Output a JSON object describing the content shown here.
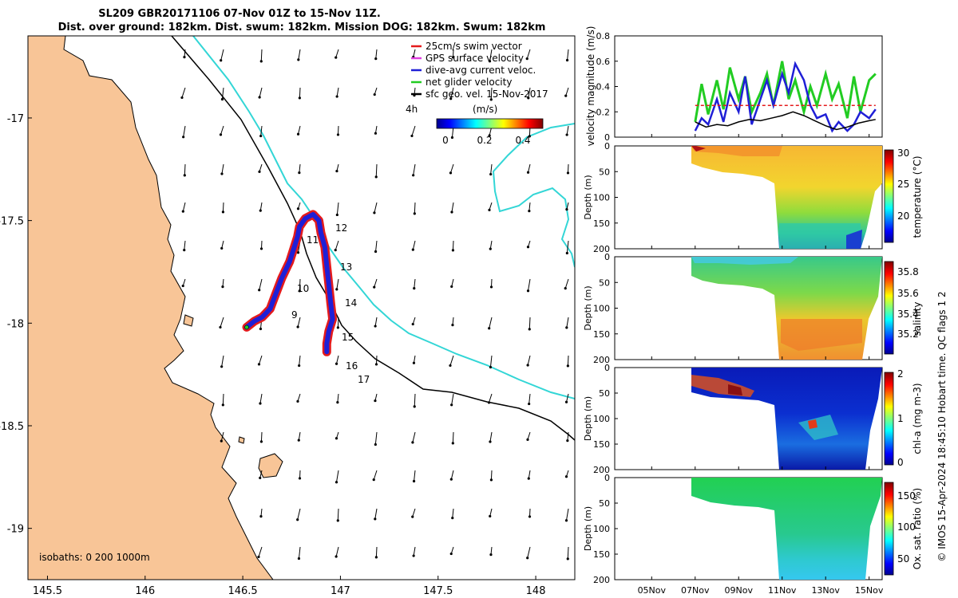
{
  "title": {
    "line1": "SL209 GBR20171106 07-Nov 01Z to 15-Nov 11Z.",
    "line2": "Dist. over ground: 182km. Dist. swum: 182km. Mission DOG: 182km. Swum: 182km"
  },
  "chart_data": [
    {
      "type": "map",
      "name": "glider-track-map",
      "xticks": [
        "145.5",
        "146",
        "146.5",
        "147",
        "147.5",
        "148"
      ],
      "xticks_values": [
        145.5,
        146,
        146.5,
        147,
        147.5,
        148
      ],
      "yticks": [
        "-17",
        "-17.5",
        "-18",
        "-18.5",
        "-19"
      ],
      "yticks_values": [
        -17,
        -17.5,
        -18,
        -18.5,
        -19
      ],
      "xlim": [
        145.4,
        148.2
      ],
      "ylim": [
        -19.25,
        -16.6
      ],
      "isobaths_label": "isobaths: 0   200  1000m",
      "legend": [
        {
          "label": "25cm/s swim vector",
          "color": "#e41a1c"
        },
        {
          "label": "GPS surface velocity",
          "color": "#e040e0"
        },
        {
          "label": "dive-avg current veloc.",
          "color": "#1f1fd6"
        },
        {
          "label": "net glider velocity",
          "color": "#22cc22"
        },
        {
          "label": "sfc geo. vel. 15-Nov-2017",
          "color": "#000000"
        }
      ],
      "scale_label": "4h",
      "colorbar": {
        "label": "(m/s)",
        "ticks": [
          "0",
          "0.2",
          "0.4"
        ],
        "range": [
          0,
          0.5
        ]
      },
      "day_labels": [
        "9",
        "10",
        "11",
        "12",
        "13",
        "14",
        "15",
        "16",
        "17"
      ],
      "track": [
        [
          146.52,
          -18.02
        ],
        [
          146.56,
          -17.99
        ],
        [
          146.6,
          -17.97
        ],
        [
          146.64,
          -17.93
        ],
        [
          146.66,
          -17.88
        ],
        [
          146.68,
          -17.83
        ],
        [
          146.7,
          -17.78
        ],
        [
          146.72,
          -17.74
        ],
        [
          146.74,
          -17.7
        ],
        [
          146.76,
          -17.64
        ],
        [
          146.78,
          -17.58
        ],
        [
          146.79,
          -17.53
        ],
        [
          146.82,
          -17.49
        ],
        [
          146.86,
          -17.47
        ],
        [
          146.89,
          -17.5
        ],
        [
          146.9,
          -17.56
        ],
        [
          146.92,
          -17.63
        ],
        [
          146.93,
          -17.72
        ],
        [
          146.94,
          -17.81
        ],
        [
          146.95,
          -17.9
        ],
        [
          146.96,
          -17.98
        ],
        [
          146.94,
          -18.04
        ],
        [
          146.93,
          -18.1
        ],
        [
          146.93,
          -18.14
        ]
      ]
    },
    {
      "type": "line",
      "name": "velocity-magnitude",
      "ylabel": "velocity magnitude (m/s)",
      "ylim": [
        0,
        0.8
      ],
      "yticks": [
        "0",
        "0.2",
        "0.4",
        "0.6",
        "0.8"
      ],
      "series": [
        {
          "name": "net glider velocity",
          "color": "#22cc22",
          "x": [
            7.0,
            7.3,
            7.6,
            8.0,
            8.3,
            8.6,
            9.0,
            9.3,
            9.6,
            10.0,
            10.3,
            10.6,
            11.0,
            11.3,
            11.6,
            12.0,
            12.3,
            12.6,
            13.0,
            13.3,
            13.6,
            14.0,
            14.3,
            14.6,
            15.0,
            15.3
          ],
          "y": [
            0.12,
            0.42,
            0.18,
            0.45,
            0.22,
            0.55,
            0.3,
            0.48,
            0.2,
            0.35,
            0.5,
            0.25,
            0.6,
            0.3,
            0.45,
            0.2,
            0.4,
            0.25,
            0.5,
            0.3,
            0.42,
            0.15,
            0.48,
            0.2,
            0.45,
            0.5
          ]
        },
        {
          "name": "dive-avg current veloc.",
          "color": "#1f1fd6",
          "x": [
            7.0,
            7.3,
            7.6,
            8.0,
            8.3,
            8.6,
            9.0,
            9.3,
            9.6,
            10.0,
            10.3,
            10.6,
            11.0,
            11.3,
            11.6,
            12.0,
            12.3,
            12.6,
            13.0,
            13.3,
            13.6,
            14.0,
            14.3,
            14.6,
            15.0,
            15.3
          ],
          "y": [
            0.05,
            0.15,
            0.1,
            0.3,
            0.12,
            0.35,
            0.2,
            0.48,
            0.1,
            0.3,
            0.45,
            0.25,
            0.5,
            0.35,
            0.58,
            0.45,
            0.25,
            0.15,
            0.18,
            0.05,
            0.12,
            0.05,
            0.1,
            0.2,
            0.15,
            0.22
          ]
        },
        {
          "name": "25cm/s swim vector",
          "color": "#e41a1c",
          "x": [
            7.0,
            15.3
          ],
          "y": [
            0.25,
            0.25
          ]
        },
        {
          "name": "sfc geo. vel.",
          "color": "#000000",
          "x": [
            7.0,
            7.5,
            8.0,
            8.5,
            9.0,
            9.5,
            10.0,
            10.5,
            11.0,
            11.5,
            12.0,
            12.5,
            13.0,
            13.5,
            14.0,
            14.5,
            15.0,
            15.3
          ],
          "y": [
            0.12,
            0.08,
            0.1,
            0.09,
            0.12,
            0.14,
            0.13,
            0.15,
            0.17,
            0.2,
            0.17,
            0.13,
            0.09,
            0.06,
            0.08,
            0.11,
            0.13,
            0.14
          ]
        }
      ]
    },
    {
      "type": "heatmap",
      "name": "temperature-section",
      "ylabel": "Depth (m)",
      "cbar_label": "temperature (°C)",
      "cbar_ticks": [
        "30",
        "25",
        "20"
      ],
      "range": [
        15,
        30
      ]
    },
    {
      "type": "heatmap",
      "name": "salinity-section",
      "ylabel": "Depth (m)",
      "cbar_label": "salinity",
      "cbar_ticks": [
        "35.8",
        "35.6",
        "35.4",
        "35.2"
      ],
      "range": [
        35.1,
        35.9
      ]
    },
    {
      "type": "heatmap",
      "name": "chla-section",
      "ylabel": "Depth (m)",
      "cbar_label": "chl-a (mg m-3)",
      "cbar_ticks": [
        "2",
        "1",
        "0"
      ],
      "range": [
        0,
        2
      ]
    },
    {
      "type": "heatmap",
      "name": "oxygen-section",
      "ylabel": "Depth (m)",
      "cbar_label": "Ox. sat. ratio (%)",
      "cbar_ticks": [
        "150",
        "100",
        "50"
      ],
      "range": [
        20,
        175
      ]
    }
  ],
  "section_depth_ticks": [
    "0",
    "50",
    "100",
    "150",
    "200"
  ],
  "time_axis": {
    "labels": [
      "05Nov",
      "07Nov",
      "09Nov",
      "11Nov",
      "13Nov",
      "15Nov"
    ],
    "values": [
      5,
      7,
      9,
      11,
      13,
      15
    ],
    "xlim": [
      3.3,
      15.6
    ]
  },
  "side_note": "© IMOS 15-Apr-2024 18:45:10 Hobart time. QC flags 1  2",
  "colors": {
    "land": "#f8c597",
    "cyan": "#33d6d6",
    "track_red": "#e41a1c",
    "track_blue": "#1f1fd6"
  }
}
